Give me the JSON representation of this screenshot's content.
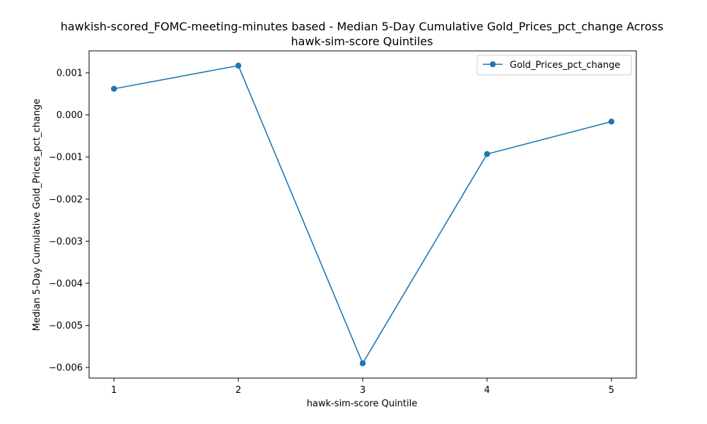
{
  "chart_data": {
    "type": "line",
    "title_line1": "hawkish-scored_FOMC-meeting-minutes based - Median 5-Day Cumulative Gold_Prices_pct_change Across",
    "title_line2": "hawk-sim-score Quintiles",
    "xlabel": "hawk-sim-score Quintile",
    "ylabel": "Median 5-Day Cumulative Gold_Prices_pct_change",
    "x": [
      1,
      2,
      3,
      4,
      5
    ],
    "x_tick_labels": [
      "1",
      "2",
      "3",
      "4",
      "5"
    ],
    "xlim": [
      0.8,
      5.2
    ],
    "ylim": [
      -0.00625,
      0.00152
    ],
    "y_ticks": [
      0.001,
      0.0,
      -0.001,
      -0.002,
      -0.003,
      -0.004,
      -0.005,
      -0.006
    ],
    "y_tick_labels": [
      "0.001",
      "0.000",
      "−0.001",
      "−0.002",
      "−0.003",
      "−0.004",
      "−0.005",
      "−0.006"
    ],
    "series": [
      {
        "name": "Gold_Prices_pct_change",
        "color": "#1f77b4",
        "marker": "circle",
        "values": [
          0.00062,
          0.00117,
          -0.0059,
          -0.00093,
          -0.00016
        ]
      }
    ],
    "legend_position": "top-right",
    "grid": false
  }
}
